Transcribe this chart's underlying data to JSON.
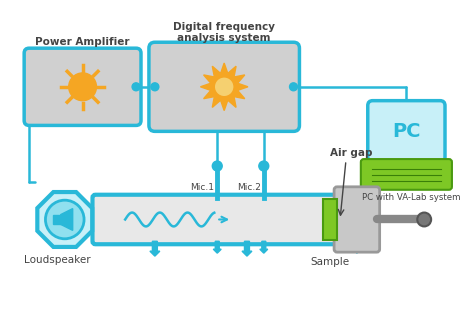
{
  "bg_color": "#ffffff",
  "cyan": "#29b8d8",
  "gray_box": "#d0d0d0",
  "orange": "#f5a623",
  "green": "#7ec825",
  "tube_fill": "#e8e8e8",
  "text_color": "#444444",
  "lcyan_box": "#c8f0f8",
  "labels": {
    "power_amp": "Power Amplifier",
    "digital_freq": "Digital frequency\nanalysis system",
    "loudspeaker": "Loudspeaker",
    "mic1": "Mic.1",
    "mic2": "Mic.2",
    "air_gap": "Air gap",
    "sample": "Sample",
    "pc": "PC",
    "pc_system": "PC with VA-Lab system"
  },
  "figsize": [
    4.74,
    3.35
  ],
  "dpi": 100
}
